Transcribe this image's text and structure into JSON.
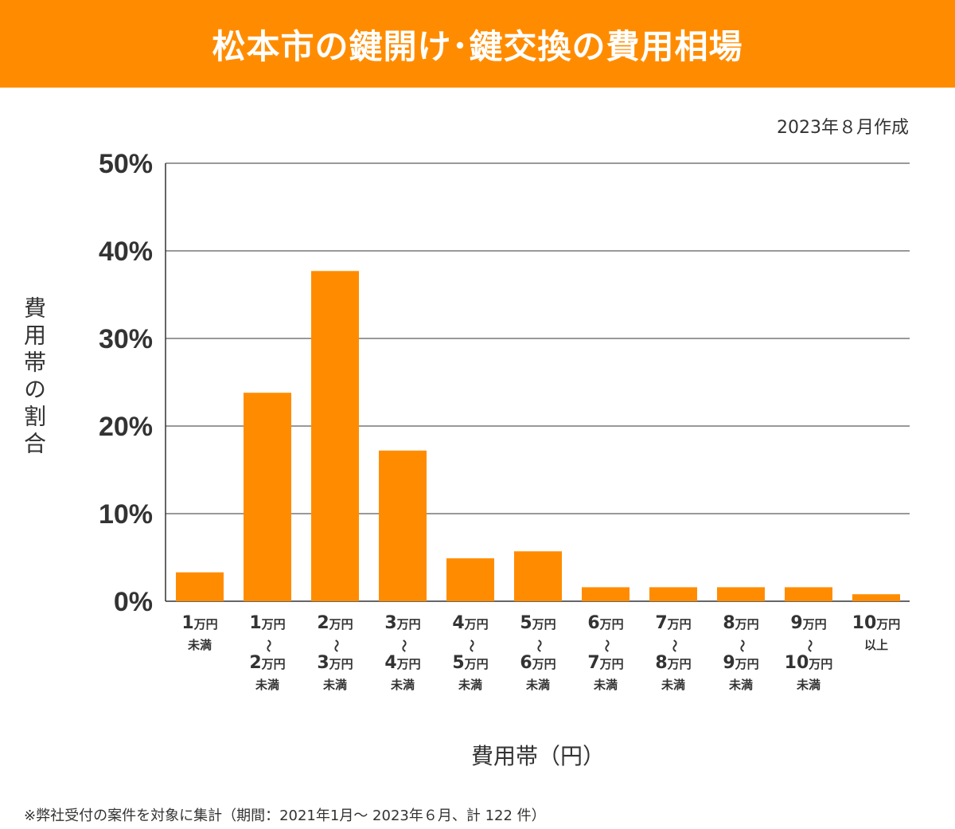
{
  "header": {
    "title": "松本市の鍵開け･鍵交換の費用相場",
    "bg_color": "#ff8c00"
  },
  "created": "2023年８月作成",
  "footnote": "※弊社受付の案件を対象に集計（期間：2021年1月～ 2023年６月、計 122 件）",
  "chart_data": {
    "type": "bar",
    "title": "松本市の鍵開け･鍵交換の費用相場",
    "xlabel": "費用帯（円）",
    "ylabel": "費用帯の割合",
    "ylim": [
      0,
      50
    ],
    "yticks": [
      "0%",
      "10%",
      "20%",
      "30%",
      "40%",
      "50%"
    ],
    "grid": true,
    "bar_color": "#ff8c00",
    "categories": [
      [
        [
          "1",
          "万円"
        ],
        [
          "未満"
        ]
      ],
      [
        [
          "1",
          "万円"
        ],
        [
          "～"
        ],
        [
          "2",
          "万円"
        ],
        [
          "未満"
        ]
      ],
      [
        [
          "2",
          "万円"
        ],
        [
          "～"
        ],
        [
          "3",
          "万円"
        ],
        [
          "未満"
        ]
      ],
      [
        [
          "3",
          "万円"
        ],
        [
          "～"
        ],
        [
          "4",
          "万円"
        ],
        [
          "未満"
        ]
      ],
      [
        [
          "4",
          "万円"
        ],
        [
          "～"
        ],
        [
          "5",
          "万円"
        ],
        [
          "未満"
        ]
      ],
      [
        [
          "5",
          "万円"
        ],
        [
          "～"
        ],
        [
          "6",
          "万円"
        ],
        [
          "未満"
        ]
      ],
      [
        [
          "6",
          "万円"
        ],
        [
          "～"
        ],
        [
          "7",
          "万円"
        ],
        [
          "未満"
        ]
      ],
      [
        [
          "7",
          "万円"
        ],
        [
          "～"
        ],
        [
          "8",
          "万円"
        ],
        [
          "未満"
        ]
      ],
      [
        [
          "8",
          "万円"
        ],
        [
          "～"
        ],
        [
          "9",
          "万円"
        ],
        [
          "未満"
        ]
      ],
      [
        [
          "9",
          "万円"
        ],
        [
          "～"
        ],
        [
          "10",
          "万円"
        ],
        [
          "未満"
        ]
      ],
      [
        [
          "10",
          "万円"
        ],
        [
          "以上"
        ]
      ]
    ],
    "values": [
      3.3,
      23.8,
      37.7,
      17.2,
      4.9,
      5.7,
      1.6,
      1.6,
      1.6,
      1.6,
      0.8
    ]
  }
}
